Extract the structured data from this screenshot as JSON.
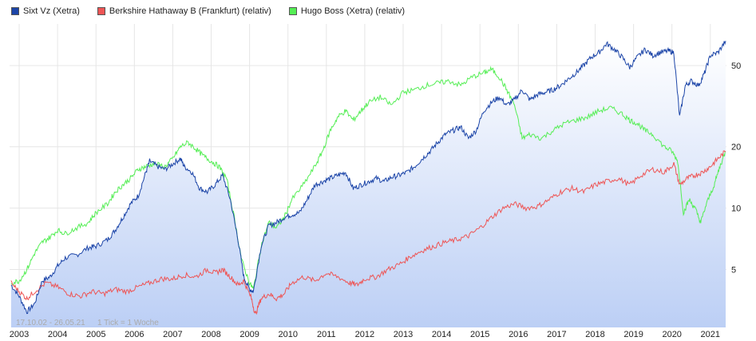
{
  "legend": {
    "series0": "Sixt Vz (Xetra)",
    "series1": "Berkshire Hathaway B (Frankfurt) (relativ)",
    "series2": "Hugo Boss (Xetra) (relativ)"
  },
  "footnote": {
    "range": "17.10.02 - 26.05.21",
    "tick": "1 Tick = 1 Woche"
  },
  "colors": {
    "series0": "#1c45a8",
    "series1": "#ee5555",
    "series2": "#55ee55",
    "area_top": "#ffffff",
    "area_bottom": "#bccff5"
  },
  "chart_data": {
    "type": "line",
    "y_scale": "log",
    "ylim": [
      2.6,
      80
    ],
    "xlim": [
      2002.75,
      2021.42
    ],
    "grid": true,
    "legend_position": "top-left",
    "x_ticks": [
      "2003",
      "2004",
      "2005",
      "2006",
      "2007",
      "2008",
      "2009",
      "2010",
      "2011",
      "2012",
      "2013",
      "2014",
      "2015",
      "2016",
      "2017",
      "2018",
      "2019",
      "2020",
      "2021"
    ],
    "y_ticks": [
      5,
      10,
      20,
      50
    ],
    "series": [
      {
        "name": "Sixt Vz (Xetra)",
        "area": true,
        "points": [
          [
            2002.79,
            4.2
          ],
          [
            2003.0,
            3.7
          ],
          [
            2003.2,
            3.1
          ],
          [
            2003.4,
            3.4
          ],
          [
            2003.6,
            4.4
          ],
          [
            2003.8,
            4.6
          ],
          [
            2004.0,
            5.2
          ],
          [
            2004.2,
            5.7
          ],
          [
            2004.5,
            5.9
          ],
          [
            2004.8,
            6.4
          ],
          [
            2005.0,
            6.5
          ],
          [
            2005.3,
            7.0
          ],
          [
            2005.5,
            7.8
          ],
          [
            2005.7,
            9.0
          ],
          [
            2005.9,
            10.5
          ],
          [
            2006.1,
            11.5
          ],
          [
            2006.3,
            15.0
          ],
          [
            2006.4,
            17.0
          ],
          [
            2006.6,
            16.0
          ],
          [
            2006.8,
            15.5
          ],
          [
            2007.0,
            16.5
          ],
          [
            2007.2,
            17.5
          ],
          [
            2007.3,
            16.0
          ],
          [
            2007.5,
            15.0
          ],
          [
            2007.7,
            12.5
          ],
          [
            2007.9,
            12.0
          ],
          [
            2008.1,
            13.0
          ],
          [
            2008.3,
            14.5
          ],
          [
            2008.5,
            11.0
          ],
          [
            2008.7,
            7.0
          ],
          [
            2008.85,
            4.6
          ],
          [
            2009.0,
            4.0
          ],
          [
            2009.1,
            3.9
          ],
          [
            2009.3,
            6.5
          ],
          [
            2009.5,
            8.2
          ],
          [
            2009.7,
            8.5
          ],
          [
            2009.9,
            9.0
          ],
          [
            2010.1,
            9.3
          ],
          [
            2010.3,
            9.5
          ],
          [
            2010.5,
            11.0
          ],
          [
            2010.7,
            13.0
          ],
          [
            2010.9,
            13.5
          ],
          [
            2011.1,
            14.0
          ],
          [
            2011.3,
            14.5
          ],
          [
            2011.5,
            15.0
          ],
          [
            2011.7,
            12.5
          ],
          [
            2011.9,
            13.0
          ],
          [
            2012.1,
            13.5
          ],
          [
            2012.3,
            14.0
          ],
          [
            2012.5,
            13.5
          ],
          [
            2012.7,
            14.2
          ],
          [
            2012.9,
            14.5
          ],
          [
            2013.1,
            15.0
          ],
          [
            2013.3,
            16.0
          ],
          [
            2013.5,
            17.5
          ],
          [
            2013.7,
            19.0
          ],
          [
            2013.9,
            21.0
          ],
          [
            2014.1,
            23.0
          ],
          [
            2014.3,
            24.0
          ],
          [
            2014.5,
            25.0
          ],
          [
            2014.7,
            22.0
          ],
          [
            2014.9,
            24.0
          ],
          [
            2015.1,
            30.0
          ],
          [
            2015.3,
            33.0
          ],
          [
            2015.5,
            35.0
          ],
          [
            2015.7,
            32.0
          ],
          [
            2015.9,
            34.0
          ],
          [
            2016.1,
            38.0
          ],
          [
            2016.3,
            34.0
          ],
          [
            2016.5,
            36.0
          ],
          [
            2016.7,
            37.0
          ],
          [
            2016.9,
            38.0
          ],
          [
            2017.1,
            40.0
          ],
          [
            2017.3,
            43.0
          ],
          [
            2017.5,
            46.0
          ],
          [
            2017.7,
            50.0
          ],
          [
            2017.9,
            55.0
          ],
          [
            2018.1,
            58.0
          ],
          [
            2018.3,
            64.0
          ],
          [
            2018.5,
            60.0
          ],
          [
            2018.7,
            55.0
          ],
          [
            2018.9,
            49.0
          ],
          [
            2019.1,
            55.0
          ],
          [
            2019.3,
            60.0
          ],
          [
            2019.5,
            56.0
          ],
          [
            2019.7,
            58.0
          ],
          [
            2019.9,
            59.0
          ],
          [
            2020.05,
            58.0
          ],
          [
            2020.2,
            28.0
          ],
          [
            2020.35,
            40.0
          ],
          [
            2020.5,
            42.0
          ],
          [
            2020.7,
            40.0
          ],
          [
            2020.85,
            46.0
          ],
          [
            2021.0,
            56.0
          ],
          [
            2021.2,
            58.0
          ],
          [
            2021.4,
            66.0
          ]
        ]
      },
      {
        "name": "Berkshire Hathaway B (Frankfurt) (relativ)",
        "area": false,
        "points": [
          [
            2002.79,
            4.3
          ],
          [
            2003.0,
            3.9
          ],
          [
            2003.2,
            3.6
          ],
          [
            2003.4,
            3.9
          ],
          [
            2003.7,
            4.3
          ],
          [
            2004.0,
            4.1
          ],
          [
            2004.3,
            3.8
          ],
          [
            2004.6,
            3.7
          ],
          [
            2004.9,
            3.9
          ],
          [
            2005.2,
            3.8
          ],
          [
            2005.5,
            4.0
          ],
          [
            2005.8,
            3.9
          ],
          [
            2006.1,
            4.1
          ],
          [
            2006.4,
            4.3
          ],
          [
            2006.7,
            4.5
          ],
          [
            2007.0,
            4.5
          ],
          [
            2007.3,
            4.7
          ],
          [
            2007.6,
            4.6
          ],
          [
            2007.9,
            5.0
          ],
          [
            2008.1,
            4.8
          ],
          [
            2008.3,
            5.0
          ],
          [
            2008.5,
            4.6
          ],
          [
            2008.7,
            4.2
          ],
          [
            2008.85,
            4.4
          ],
          [
            2009.05,
            3.6
          ],
          [
            2009.15,
            3.0
          ],
          [
            2009.3,
            3.6
          ],
          [
            2009.5,
            3.8
          ],
          [
            2009.7,
            3.6
          ],
          [
            2009.9,
            3.8
          ],
          [
            2010.1,
            4.3
          ],
          [
            2010.4,
            4.6
          ],
          [
            2010.7,
            4.4
          ],
          [
            2011.0,
            4.8
          ],
          [
            2011.3,
            4.6
          ],
          [
            2011.6,
            4.3
          ],
          [
            2011.8,
            4.2
          ],
          [
            2012.0,
            4.5
          ],
          [
            2012.3,
            4.6
          ],
          [
            2012.6,
            5.0
          ],
          [
            2012.9,
            5.3
          ],
          [
            2013.2,
            5.8
          ],
          [
            2013.5,
            6.2
          ],
          [
            2013.8,
            6.5
          ],
          [
            2014.1,
            6.8
          ],
          [
            2014.4,
            7.0
          ],
          [
            2014.7,
            7.3
          ],
          [
            2015.0,
            8.0
          ],
          [
            2015.3,
            9.0
          ],
          [
            2015.6,
            10.0
          ],
          [
            2015.9,
            10.5
          ],
          [
            2016.2,
            10.0
          ],
          [
            2016.5,
            10.2
          ],
          [
            2016.8,
            11.0
          ],
          [
            2017.1,
            12.0
          ],
          [
            2017.4,
            12.5
          ],
          [
            2017.7,
            12.0
          ],
          [
            2018.0,
            13.0
          ],
          [
            2018.3,
            13.5
          ],
          [
            2018.6,
            14.0
          ],
          [
            2018.9,
            13.0
          ],
          [
            2019.2,
            14.5
          ],
          [
            2019.5,
            15.5
          ],
          [
            2019.8,
            15.0
          ],
          [
            2020.05,
            16.5
          ],
          [
            2020.2,
            13.0
          ],
          [
            2020.4,
            14.0
          ],
          [
            2020.6,
            14.5
          ],
          [
            2020.8,
            15.0
          ],
          [
            2021.0,
            16.0
          ],
          [
            2021.2,
            17.5
          ],
          [
            2021.4,
            19.0
          ]
        ]
      },
      {
        "name": "Hugo Boss (Xetra) (relativ)",
        "area": false,
        "points": [
          [
            2002.79,
            4.3
          ],
          [
            2003.0,
            4.4
          ],
          [
            2003.2,
            5.0
          ],
          [
            2003.4,
            6.0
          ],
          [
            2003.6,
            6.8
          ],
          [
            2003.8,
            7.2
          ],
          [
            2004.0,
            7.8
          ],
          [
            2004.2,
            7.5
          ],
          [
            2004.5,
            8.0
          ],
          [
            2004.8,
            8.5
          ],
          [
            2005.0,
            9.5
          ],
          [
            2005.3,
            10.5
          ],
          [
            2005.5,
            12.0
          ],
          [
            2005.7,
            13.0
          ],
          [
            2005.9,
            14.0
          ],
          [
            2006.1,
            15.5
          ],
          [
            2006.3,
            16.0
          ],
          [
            2006.5,
            16.5
          ],
          [
            2006.8,
            16.0
          ],
          [
            2007.0,
            17.5
          ],
          [
            2007.2,
            20.0
          ],
          [
            2007.4,
            21.0
          ],
          [
            2007.6,
            19.5
          ],
          [
            2007.8,
            18.0
          ],
          [
            2008.0,
            17.0
          ],
          [
            2008.2,
            16.0
          ],
          [
            2008.4,
            14.0
          ],
          [
            2008.6,
            9.0
          ],
          [
            2008.8,
            5.5
          ],
          [
            2009.0,
            4.3
          ],
          [
            2009.1,
            4.0
          ],
          [
            2009.3,
            6.5
          ],
          [
            2009.5,
            8.5
          ],
          [
            2009.7,
            8.0
          ],
          [
            2009.9,
            9.0
          ],
          [
            2010.1,
            11.0
          ],
          [
            2010.4,
            13.0
          ],
          [
            2010.7,
            16.0
          ],
          [
            2010.9,
            19.0
          ],
          [
            2011.1,
            24.0
          ],
          [
            2011.3,
            28.0
          ],
          [
            2011.5,
            30.0
          ],
          [
            2011.7,
            27.0
          ],
          [
            2011.9,
            30.0
          ],
          [
            2012.1,
            33.0
          ],
          [
            2012.4,
            35.0
          ],
          [
            2012.7,
            32.0
          ],
          [
            2013.0,
            37.0
          ],
          [
            2013.3,
            38.0
          ],
          [
            2013.6,
            40.0
          ],
          [
            2013.9,
            41.0
          ],
          [
            2014.2,
            42.0
          ],
          [
            2014.5,
            40.0
          ],
          [
            2014.8,
            44.0
          ],
          [
            2015.1,
            46.0
          ],
          [
            2015.3,
            48.0
          ],
          [
            2015.5,
            44.0
          ],
          [
            2015.7,
            38.0
          ],
          [
            2015.9,
            32.0
          ],
          [
            2016.1,
            22.0
          ],
          [
            2016.3,
            23.0
          ],
          [
            2016.6,
            22.0
          ],
          [
            2016.9,
            24.0
          ],
          [
            2017.2,
            26.0
          ],
          [
            2017.5,
            27.0
          ],
          [
            2017.8,
            28.0
          ],
          [
            2018.1,
            30.0
          ],
          [
            2018.4,
            31.0
          ],
          [
            2018.7,
            29.0
          ],
          [
            2018.9,
            27.0
          ],
          [
            2019.1,
            26.0
          ],
          [
            2019.3,
            24.0
          ],
          [
            2019.5,
            23.0
          ],
          [
            2019.8,
            20.0
          ],
          [
            2020.0,
            19.0
          ],
          [
            2020.15,
            17.0
          ],
          [
            2020.3,
            9.5
          ],
          [
            2020.45,
            11.0
          ],
          [
            2020.6,
            10.0
          ],
          [
            2020.75,
            8.5
          ],
          [
            2020.9,
            10.5
          ],
          [
            2021.1,
            13.0
          ],
          [
            2021.25,
            16.0
          ],
          [
            2021.4,
            19.0
          ]
        ]
      }
    ]
  }
}
